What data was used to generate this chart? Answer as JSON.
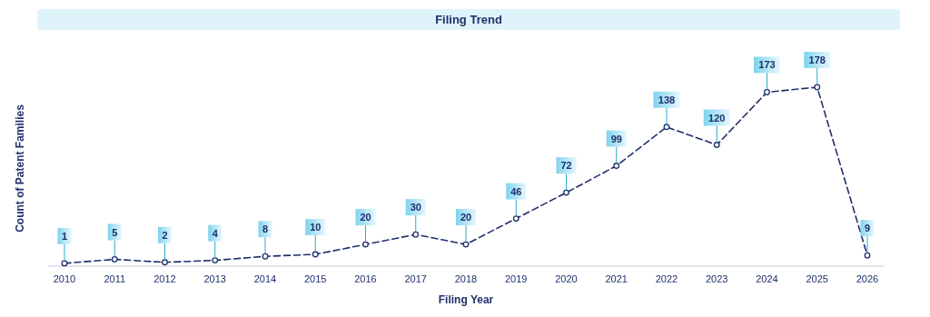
{
  "chart_data": {
    "type": "line",
    "title": "Filing Trend",
    "xlabel": "Filing Year",
    "ylabel": "Count of Patent Families",
    "categories": [
      "2010",
      "2011",
      "2012",
      "2013",
      "2014",
      "2015",
      "2016",
      "2017",
      "2018",
      "2019",
      "2020",
      "2021",
      "2022",
      "2023",
      "2024",
      "2025",
      "2026"
    ],
    "series": [
      {
        "color": "#1f2f6b",
        "values": [
          1,
          5,
          2,
          4,
          8,
          10,
          20,
          30,
          20,
          46,
          72,
          99,
          138,
          120,
          173,
          178,
          9
        ]
      }
    ],
    "data_labels": true,
    "marker": "circle",
    "line_style": "dashed",
    "grid": false
  }
}
